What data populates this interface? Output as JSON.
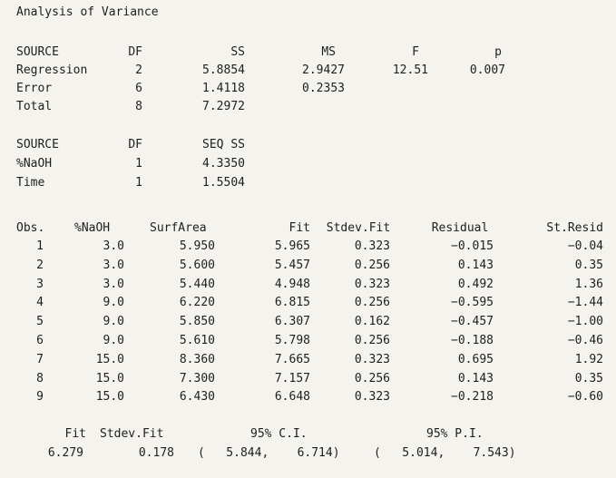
{
  "anova": {
    "title": "Analysis of Variance",
    "headers": [
      "SOURCE",
      "DF",
      "SS",
      "MS",
      "F",
      "p"
    ],
    "rows": [
      [
        "Regression",
        "2",
        "5.8854",
        "2.9427",
        "12.51",
        "0.007"
      ],
      [
        "Error",
        "6",
        "1.4118",
        "0.2353",
        "",
        ""
      ],
      [
        "Total",
        "8",
        "7.2972",
        "",
        "",
        ""
      ]
    ]
  },
  "seq": {
    "headers": [
      "SOURCE",
      "DF",
      "SEQ SS"
    ],
    "rows": [
      [
        "%NaOH",
        "1",
        "4.3350"
      ],
      [
        "Time",
        "1",
        "1.5504"
      ]
    ]
  },
  "obs": {
    "headers": [
      "Obs.",
      "%NaOH",
      "SurfArea",
      "Fit",
      "Stdev.Fit",
      "Residual",
      "St.Resid"
    ],
    "rows": [
      [
        "1",
        "3.0",
        "5.950",
        "5.965",
        "0.323",
        "−0.015",
        "−0.04"
      ],
      [
        "2",
        "3.0",
        "5.600",
        "5.457",
        "0.256",
        "0.143",
        "0.35"
      ],
      [
        "3",
        "3.0",
        "5.440",
        "4.948",
        "0.323",
        "0.492",
        "1.36"
      ],
      [
        "4",
        "9.0",
        "6.220",
        "6.815",
        "0.256",
        "−0.595",
        "−1.44"
      ],
      [
        "5",
        "9.0",
        "5.850",
        "6.307",
        "0.162",
        "−0.457",
        "−1.00"
      ],
      [
        "6",
        "9.0",
        "5.610",
        "5.798",
        "0.256",
        "−0.188",
        "−0.46"
      ],
      [
        "7",
        "15.0",
        "8.360",
        "7.665",
        "0.323",
        "0.695",
        "1.92"
      ],
      [
        "8",
        "15.0",
        "7.300",
        "7.157",
        "0.256",
        "0.143",
        "0.35"
      ],
      [
        "9",
        "15.0",
        "6.430",
        "6.648",
        "0.323",
        "−0.218",
        "−0.60"
      ]
    ]
  },
  "prediction": {
    "headers": [
      "Fit",
      "Stdev.Fit",
      "95% C.I.",
      "95% P.I."
    ],
    "fit": "6.279",
    "stdev_fit": "0.178",
    "ci": "(   5.844,    6.714)",
    "pi": "(   5.014,    7.543)"
  }
}
